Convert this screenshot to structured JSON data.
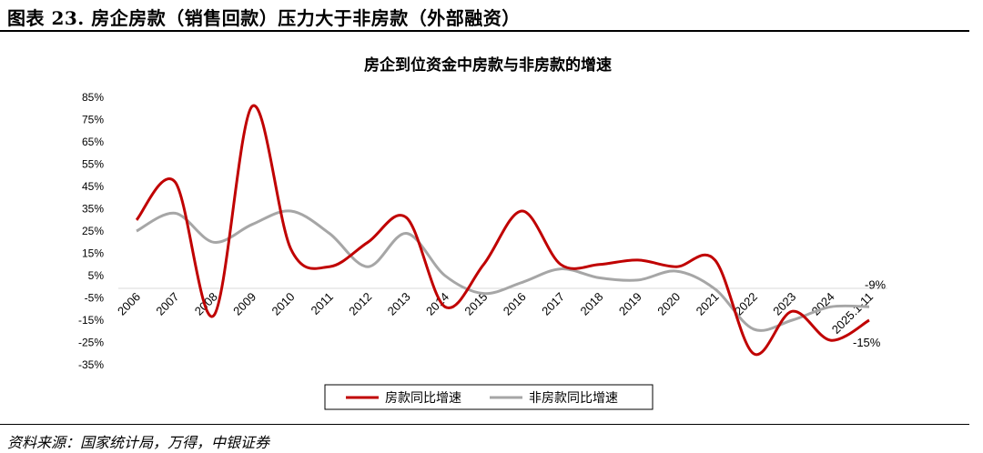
{
  "figure": {
    "title": "图表 23. 房企房款（销售回款）压力大于非房款（外部融资）",
    "source": "资料来源：国家统计局，万得，中银证券"
  },
  "chart_data": {
    "type": "line",
    "title": "房企到位资金中房款与非房款的增速",
    "categories": [
      "2006",
      "2007",
      "2008",
      "2009",
      "2010",
      "2011",
      "2012",
      "2013",
      "2014",
      "2015",
      "2016",
      "2017",
      "2018",
      "2019",
      "2020",
      "2021",
      "2022",
      "2023",
      "2024",
      "2025.1-11"
    ],
    "yticks": [
      "85%",
      "75%",
      "65%",
      "55%",
      "45%",
      "35%",
      "25%",
      "15%",
      "5%",
      "-5%",
      "-15%",
      "-25%",
      "-35%"
    ],
    "ylim": [
      -35,
      85
    ],
    "series": [
      {
        "name": "房款同比增速",
        "color": "#c00000",
        "values": [
          30,
          47,
          -13,
          81,
          17,
          9,
          20,
          31,
          -9,
          10,
          34,
          10,
          10,
          12,
          9,
          12,
          -30,
          -11,
          -24,
          -15
        ]
      },
      {
        "name": "非房款同比增速",
        "color": "#a6a6a6",
        "values": [
          25,
          33,
          20,
          28,
          34,
          24,
          9,
          24,
          5,
          -3,
          2,
          8,
          4,
          3,
          7,
          -1,
          -19,
          -15,
          -9,
          -9
        ]
      }
    ],
    "annotations": [
      "-9%",
      "-15%"
    ],
    "grid": false,
    "legend": "bottom"
  }
}
